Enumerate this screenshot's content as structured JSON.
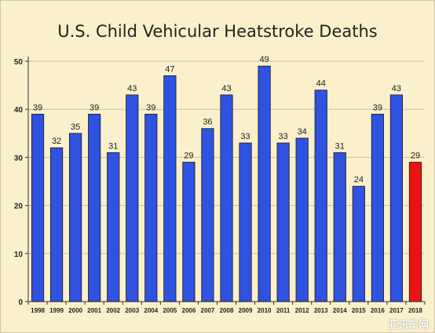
{
  "chart_data": {
    "type": "bar",
    "title": "U.S. Child Vehicular Heatstroke Deaths",
    "xlabel": "",
    "ylabel": "",
    "categories": [
      "1998",
      "1999",
      "2000",
      "2001",
      "2002",
      "2003",
      "2004",
      "2005",
      "2006",
      "2007",
      "2008",
      "2009",
      "2010",
      "2011",
      "2012",
      "2013",
      "2014",
      "2015",
      "2016",
      "2017",
      "2018"
    ],
    "values": [
      39,
      32,
      35,
      39,
      31,
      43,
      39,
      47,
      29,
      36,
      43,
      33,
      49,
      33,
      34,
      44,
      31,
      24,
      39,
      43,
      29
    ],
    "ylim": [
      0,
      50
    ],
    "yticks": [
      0,
      10,
      20,
      30,
      40,
      50
    ],
    "grid": true,
    "legend": "none",
    "bar_color": "#2f52e0",
    "highlight_color": "#ee1111",
    "highlight_index": 20,
    "data_labels": true
  },
  "watermark": "亚讯车网"
}
